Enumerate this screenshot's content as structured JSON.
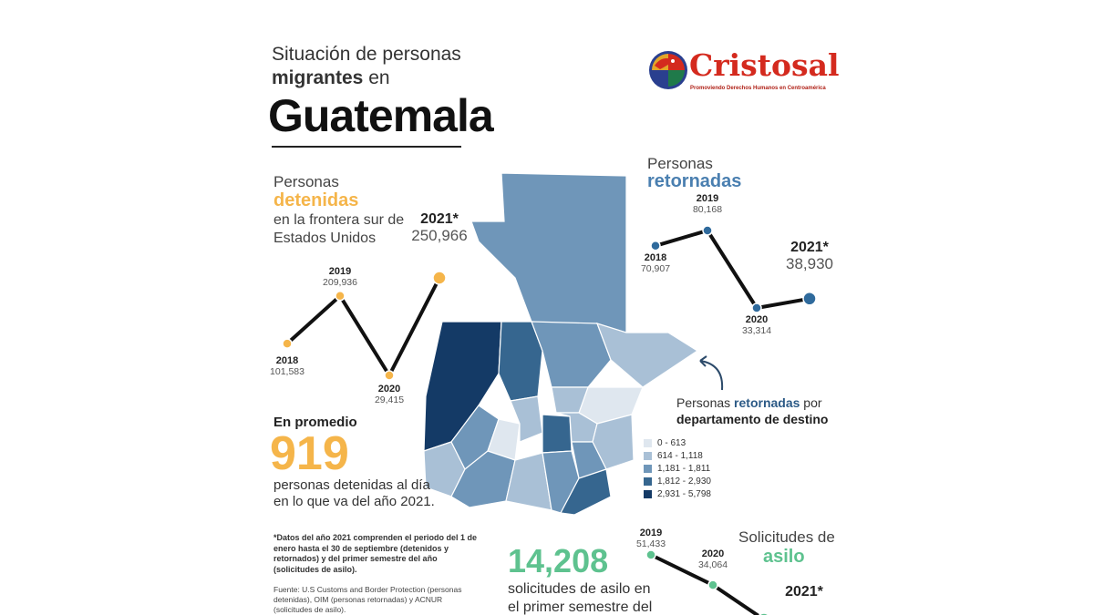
{
  "header": {
    "title_line1": "Situación de personas",
    "title_line2_bold": "migrantes",
    "title_line2_rest": " en",
    "title_country": "Guatemala"
  },
  "logo": {
    "name": "Cristosal",
    "tagline": "Promoviendo Derechos Humanos en Centroamérica",
    "icon": "cristosal-bird-logo"
  },
  "colors": {
    "detained": "#f5b54a",
    "returned": "#2f6a9c",
    "asylum": "#5ec28f",
    "line": "#111111"
  },
  "detained": {
    "label_line1": "Personas",
    "label_bold": "detenidas",
    "label_line3": "en la frontera sur de",
    "label_line4": "Estados Unidos"
  },
  "returned": {
    "label_line1": "Personas",
    "label_bold": "retornadas"
  },
  "average": {
    "label": "En promedio",
    "value": "919",
    "text_line1": "personas detenidas al día",
    "text_line2": "en lo que va del año 2021."
  },
  "note": "*Datos del año 2021 comprenden el periodo del 1 de enero hasta el 30 de septiembre (detenidos y retornados) y del primer semestre del año (solicitudes de asilo).",
  "source": "Fuente: U.S Customs and Border Protection (personas detenidas), OIM (personas retornadas) y ACNUR (solicitudes de asilo).",
  "asylum": {
    "value": "14,208",
    "text_line1": "solicitudes de asilo en",
    "text_line2": "el primer semestre del",
    "label_line1": "Solicitudes de",
    "label_bold": "asilo"
  },
  "map_legend": {
    "title_prefix": "Personas ",
    "title_bold": "retornadas",
    "title_suffix": " por",
    "title_line2": "departamento de destino",
    "items": [
      {
        "label": "0 - 613",
        "color": "#dfe7ef"
      },
      {
        "label": "614 - 1,118",
        "color": "#a9c0d6"
      },
      {
        "label": "1,181 - 1,811",
        "color": "#6f96b9"
      },
      {
        "label": "1,812 - 2,930",
        "color": "#36668f"
      },
      {
        "label": "2,931 - 5,798",
        "color": "#143a66"
      }
    ]
  },
  "chart_data": [
    {
      "type": "line",
      "name": "detained",
      "x": [
        "2018",
        "2019",
        "2020",
        "2021*"
      ],
      "values": [
        101583,
        209936,
        29415,
        250966
      ],
      "value_labels": [
        "101,583",
        "209,936",
        "29,415",
        "250,966"
      ]
    },
    {
      "type": "line",
      "name": "returned",
      "x": [
        "2018",
        "2019",
        "2020",
        "2021*"
      ],
      "values": [
        70907,
        80168,
        33314,
        38930
      ],
      "value_labels": [
        "70,907",
        "80,168",
        "33,314",
        "38,930"
      ]
    },
    {
      "type": "line",
      "name": "asylum",
      "x": [
        "2019",
        "2020",
        "2021*"
      ],
      "values": [
        51433,
        34064,
        14208
      ],
      "value_labels": [
        "51,433",
        "34,064",
        ""
      ]
    }
  ]
}
